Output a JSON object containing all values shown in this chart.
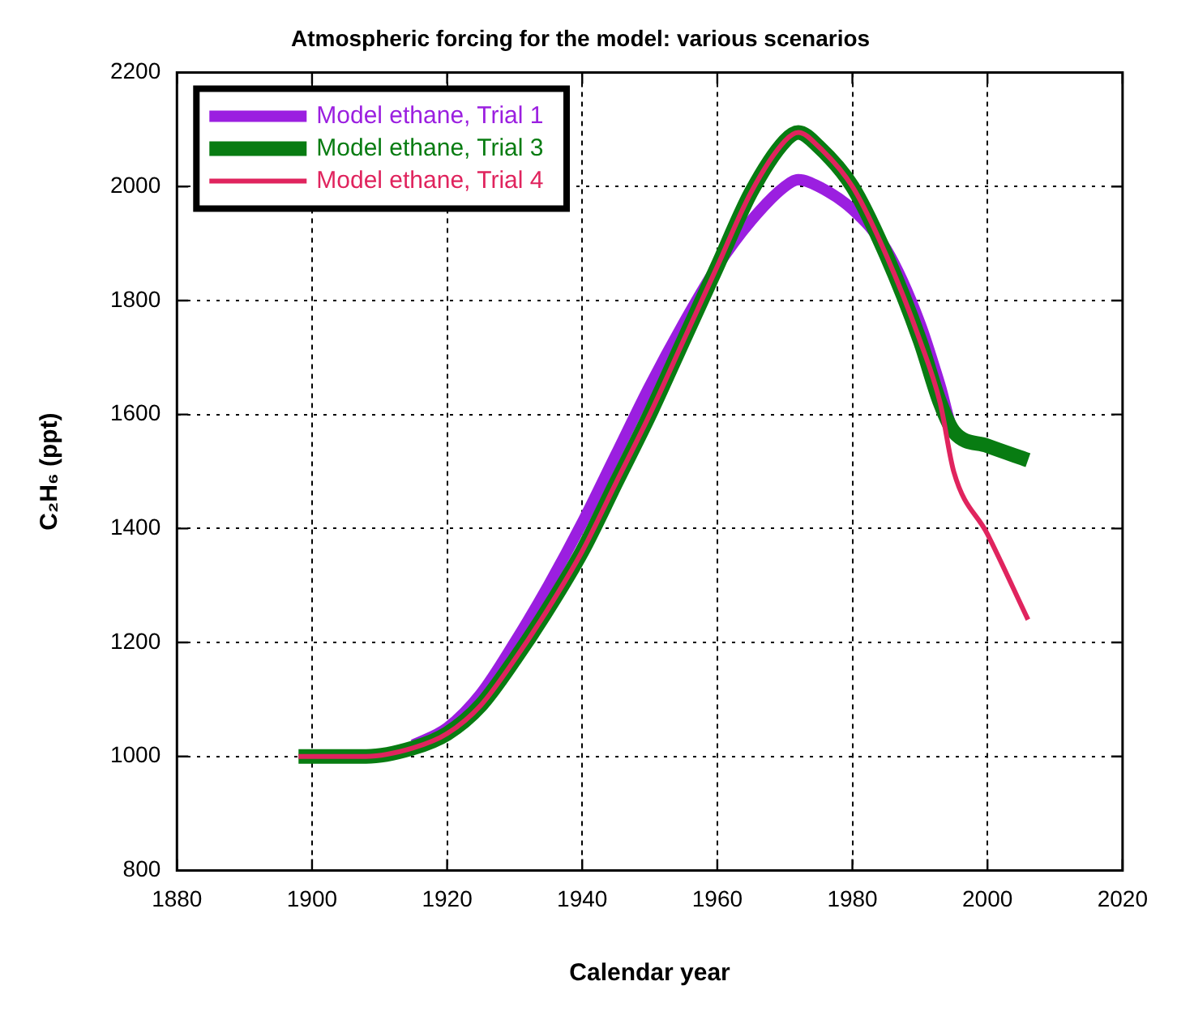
{
  "chart_data": {
    "type": "line",
    "title": "Atmospheric forcing for the model: various scenarios",
    "xlabel": "Calendar year",
    "ylabel": "C₂H₆ (ppt)",
    "xlim": [
      1880,
      2020
    ],
    "xticks": [
      1880,
      1900,
      1920,
      1940,
      1960,
      1980,
      2000,
      2020
    ],
    "ylim": [
      800,
      2200
    ],
    "yticks": [
      800,
      1000,
      1200,
      1400,
      1600,
      1800,
      2000,
      2200
    ],
    "grid": true,
    "legend": "top left",
    "marker": "none",
    "x": [
      1898,
      1908,
      1915,
      1920,
      1925,
      1930,
      1935,
      1940,
      1945,
      1950,
      1955,
      1960,
      1965,
      1970,
      1972,
      1975,
      1980,
      1985,
      1990,
      1993,
      1995,
      2000,
      2006
    ],
    "series": [
      {
        "name": "Model ethane, Trial 1",
        "color": "#9b1fe0",
        "values": [
          null,
          null,
          1020,
          1050,
          1110,
          1200,
          1300,
          1410,
          1530,
          1650,
          1760,
          1860,
          1940,
          2000,
          2012,
          2000,
          1960,
          1890,
          1760,
          1650,
          1570,
          1545,
          null
        ]
      },
      {
        "name": "Model ethane, Trial 3",
        "color": "#087c12",
        "values": [
          1000,
          1000,
          1015,
          1040,
          1090,
          1170,
          1260,
          1360,
          1480,
          1600,
          1730,
          1860,
          1990,
          2080,
          2095,
          2070,
          2000,
          1880,
          1730,
          1620,
          1570,
          1545,
          1520
        ]
      },
      {
        "name": "Model ethane, Trial 4",
        "color": "#e0245e",
        "values": [
          1000,
          1000,
          1015,
          1040,
          1090,
          1170,
          1260,
          1360,
          1480,
          1600,
          1730,
          1860,
          1990,
          2080,
          2095,
          2070,
          2000,
          1880,
          1730,
          1620,
          1500,
          1390,
          1240
        ]
      }
    ]
  }
}
